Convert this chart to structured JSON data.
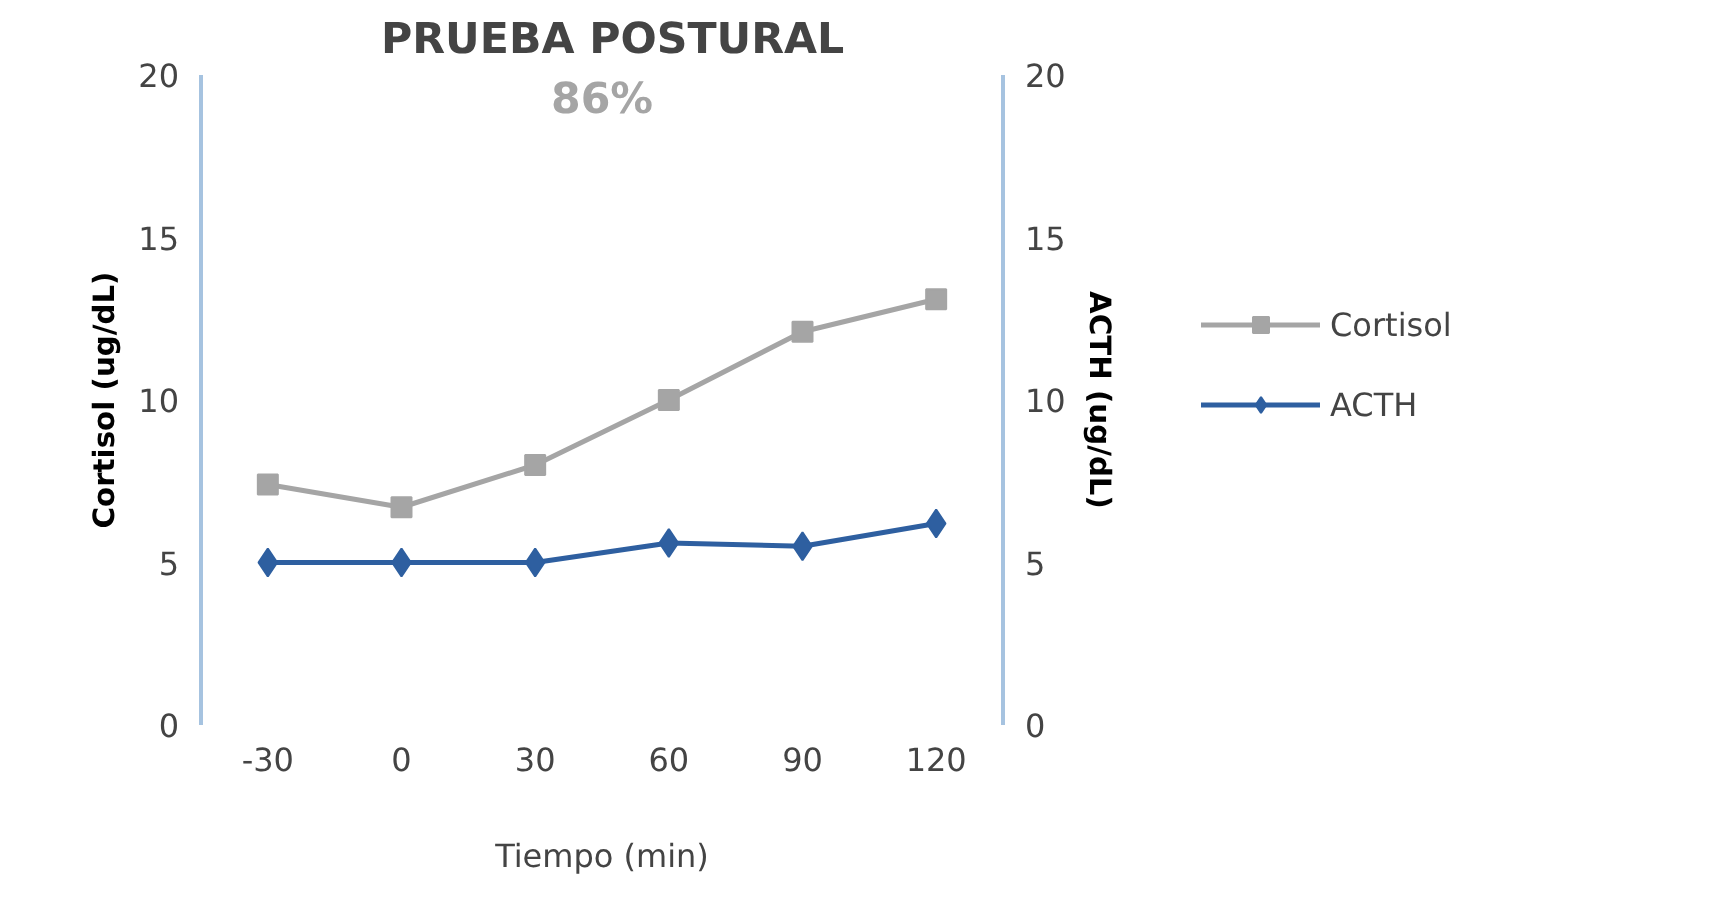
{
  "chart_data": {
    "type": "line",
    "title": "PRUEBA POSTURAL",
    "xlabel": "Tiempo (min)",
    "ylabel": "Cortisol (ug/dL)",
    "y2label": "ACTH (ug/dL)",
    "categories": [
      "-30",
      "0",
      "30",
      "60",
      "90",
      "120"
    ],
    "series": [
      {
        "name": "Cortisol",
        "color": "#a5a5a5",
        "marker": "square",
        "values": [
          7.4,
          6.7,
          8.0,
          10.0,
          12.1,
          13.1
        ]
      },
      {
        "name": "ACTH",
        "color": "#2e5fa0",
        "marker": "diamond",
        "axis": "y2",
        "values": [
          5.0,
          5.0,
          5.0,
          5.6,
          5.5,
          6.2
        ]
      }
    ],
    "ylim": [
      0,
      20
    ],
    "yticks": [
      0,
      5,
      10,
      15,
      20
    ],
    "y2lim": [
      0,
      20
    ],
    "y2ticks": [
      0,
      5,
      10,
      15,
      20
    ],
    "annotations": [
      "86%"
    ],
    "grid": false,
    "legend": "right"
  }
}
